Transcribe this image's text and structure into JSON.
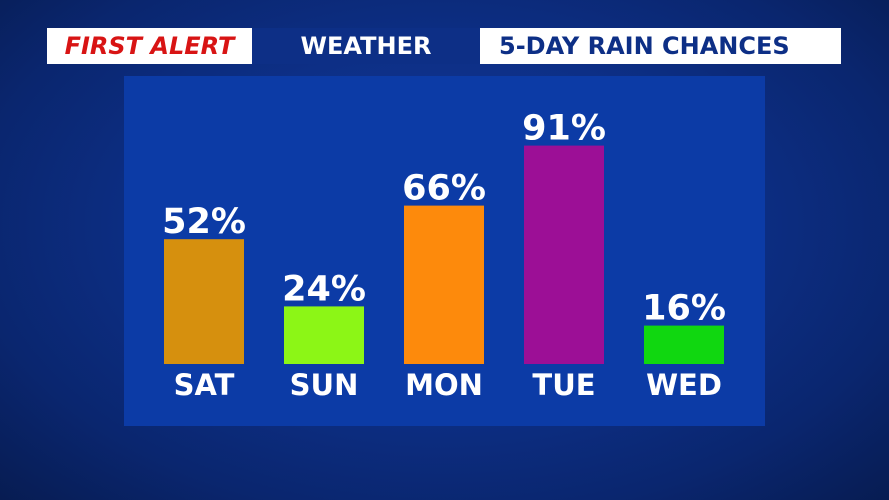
{
  "banner": {
    "brand": "FIRST ALERT",
    "section": "WEATHER",
    "title": "5-DAY RAIN CHANCES"
  },
  "chart_data": {
    "type": "bar",
    "title": "5-DAY RAIN CHANCES",
    "categories": [
      "SAT",
      "SUN",
      "MON",
      "TUE",
      "WED"
    ],
    "values": [
      52,
      24,
      66,
      91,
      16
    ],
    "value_labels": [
      "52%",
      "24%",
      "66%",
      "91%",
      "16%"
    ],
    "colors": [
      "#d6900e",
      "#8cf616",
      "#fd8a0c",
      "#9c0f96",
      "#10d710"
    ],
    "ylim": [
      0,
      100
    ],
    "grid": false,
    "legend": "none"
  }
}
